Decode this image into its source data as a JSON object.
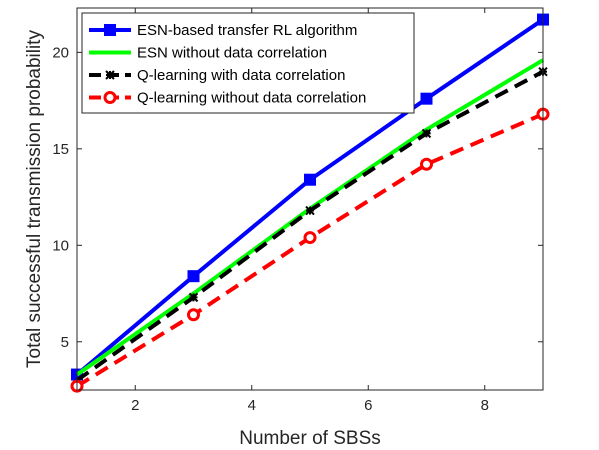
{
  "chart_data": {
    "type": "line",
    "title": "",
    "xlabel": "Number of SBSs",
    "ylabel": "Total successful transmission probability",
    "xlim": [
      1,
      9
    ],
    "ylim": [
      2.5,
      22.3
    ],
    "xticks": [
      2,
      4,
      6,
      8
    ],
    "yticks": [
      5,
      10,
      15,
      20
    ],
    "grid": false,
    "legend_position": "top-left",
    "series": [
      {
        "name": "ESN-based transfer RL algorithm",
        "color": "#0000ff",
        "dash": "solid",
        "marker": "square",
        "x": [
          1,
          3,
          5,
          7,
          9
        ],
        "y": [
          3.3,
          8.4,
          13.4,
          17.6,
          21.7
        ],
        "marker_x": [
          1,
          3,
          5,
          7,
          9
        ]
      },
      {
        "name": "ESN without data correlation",
        "color": "#00ff00",
        "dash": "solid",
        "marker": "none",
        "x": [
          1,
          3,
          5,
          7,
          9
        ],
        "y": [
          3.3,
          7.5,
          11.9,
          16.0,
          19.6
        ],
        "marker_x": []
      },
      {
        "name": "Q-learning with data correlation",
        "color": "#000000",
        "dash": "dashed",
        "marker": "asterisk",
        "x": [
          1,
          3,
          5,
          7,
          9
        ],
        "y": [
          3.0,
          7.3,
          11.8,
          15.8,
          19.0
        ],
        "marker_x": [
          3,
          5,
          7,
          9
        ]
      },
      {
        "name": "Q-learning without data correlation",
        "color": "#ff0000",
        "dash": "dashed",
        "marker": "circle",
        "x": [
          1,
          3,
          5,
          7,
          9
        ],
        "y": [
          2.7,
          6.4,
          10.4,
          14.2,
          16.8
        ],
        "marker_x": [
          1,
          3,
          5,
          7,
          9
        ]
      }
    ]
  }
}
